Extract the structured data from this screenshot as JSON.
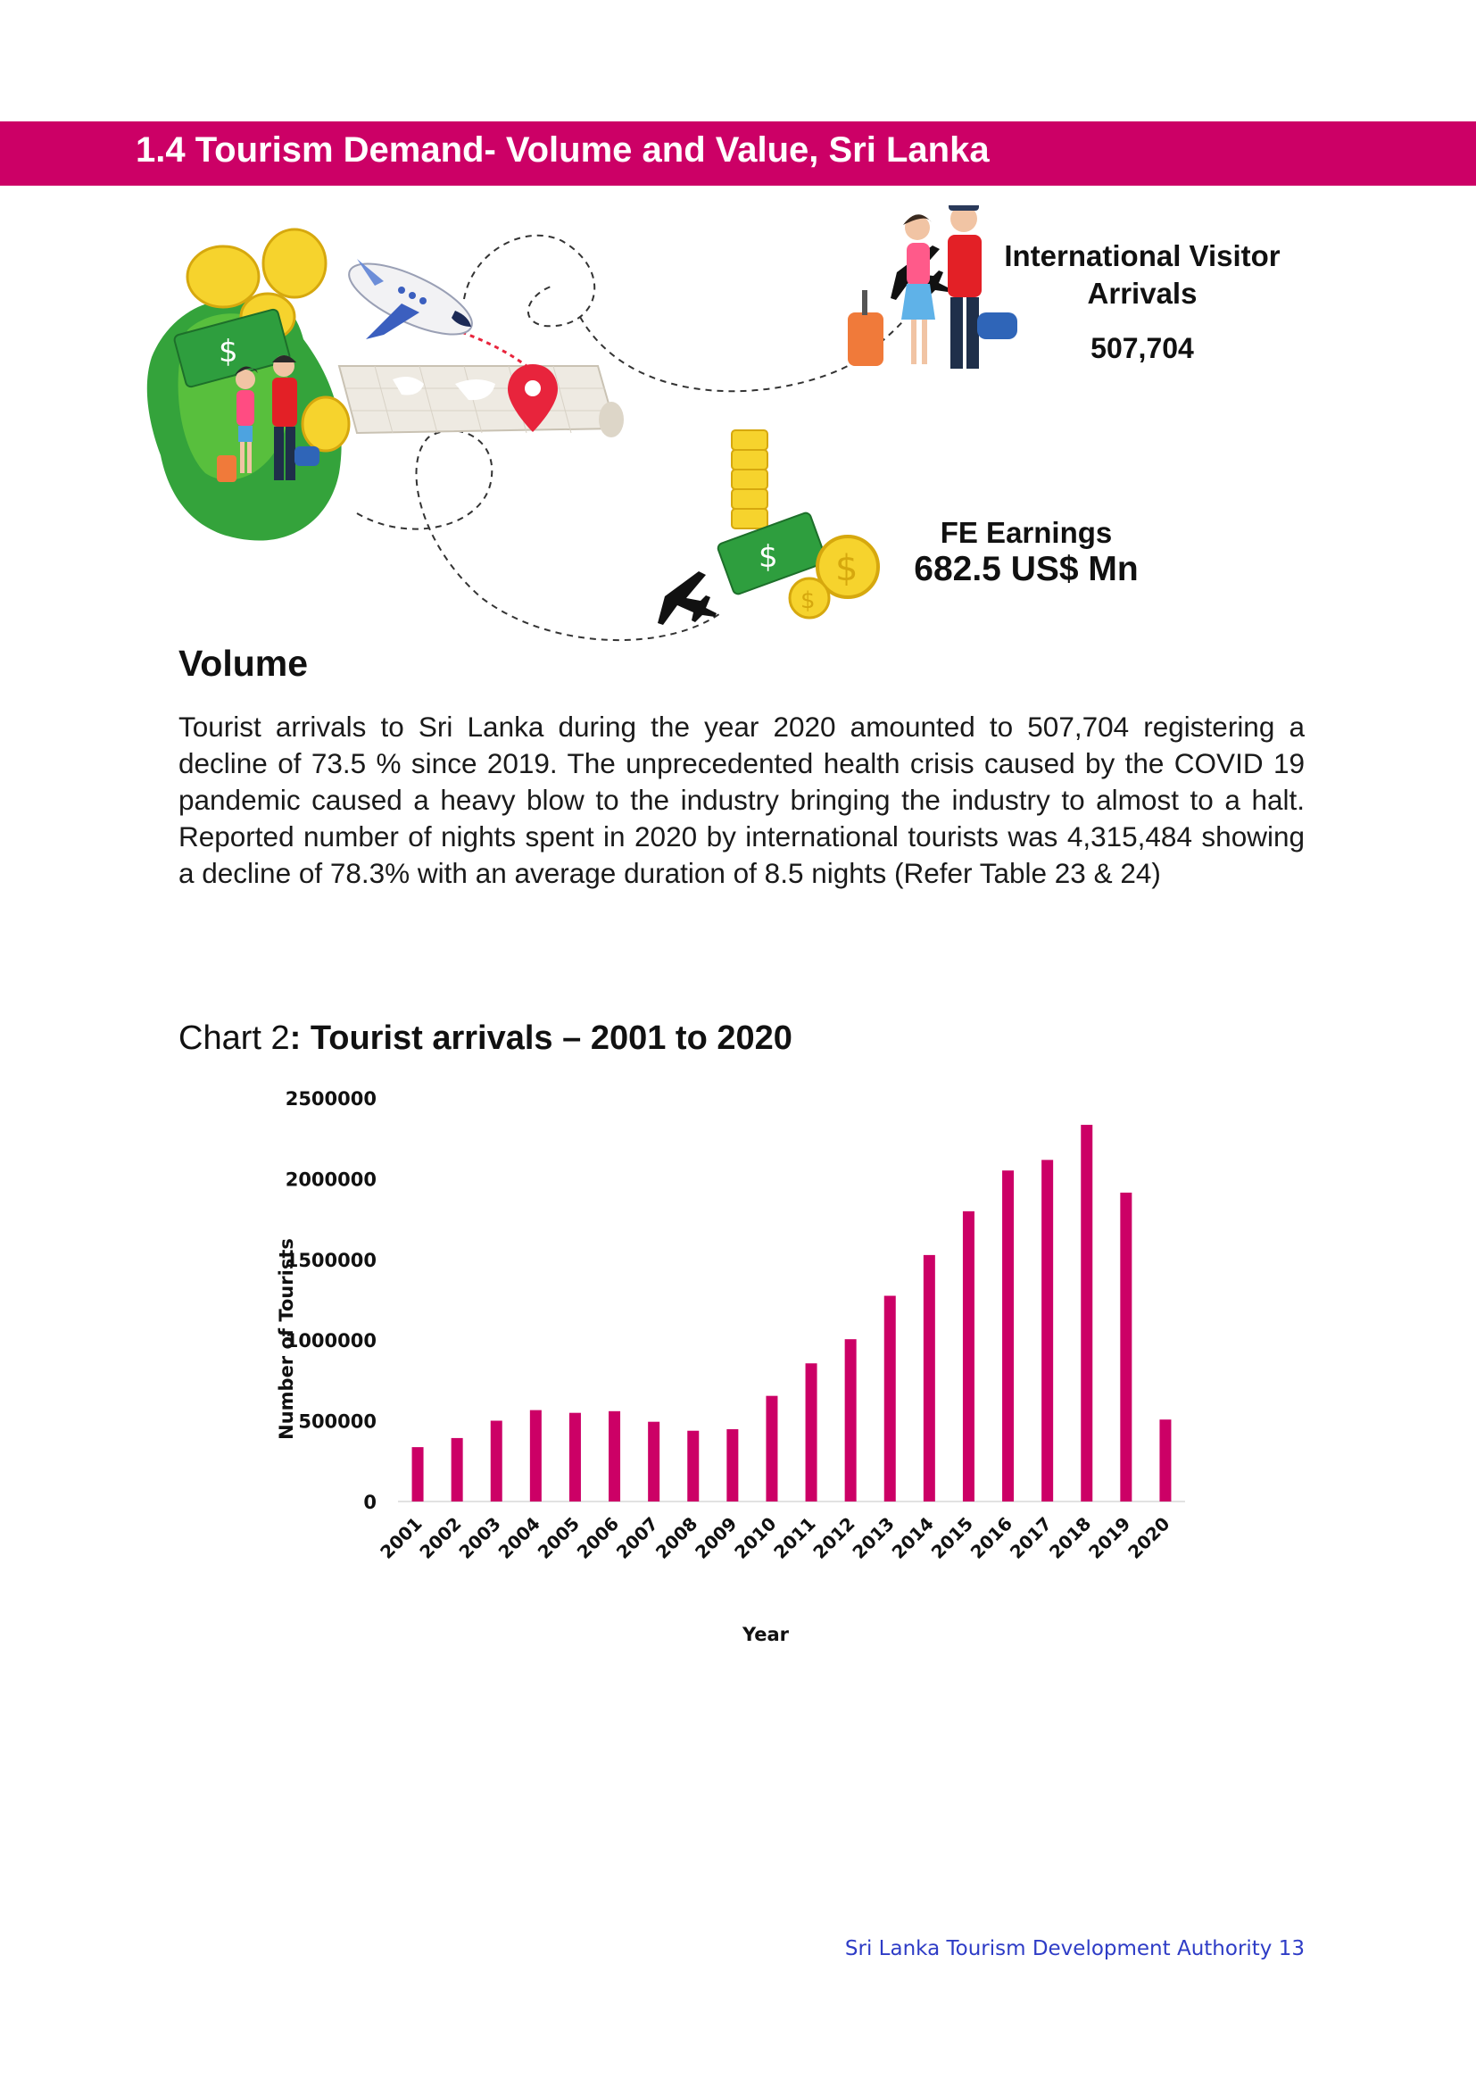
{
  "header": {
    "title": "1.4 Tourism Demand- Volume and Value, Sri Lanka",
    "color": "#cc0066"
  },
  "infographic": {
    "arrivals_label": "International Visitor Arrivals",
    "arrivals_value": "507,704",
    "earnings_label": "FE Earnings",
    "earnings_value": "682.5 US$ Mn",
    "icons": [
      "sri-lanka-map-icon",
      "coins-icon",
      "airplane-icon",
      "world-map-icon",
      "location-pin-icon",
      "travelers-icon",
      "money-icon"
    ]
  },
  "volume": {
    "heading": "Volume",
    "paragraph": "Tourist arrivals to Sri Lanka during the year 2020 amounted to 507,704 registering a decline of 73.5 % since 2019. The unprecedented health crisis caused by the COVID 19 pandemic caused a heavy blow to the industry bringing the industry to almost to a halt.  Reported number of nights spent in 2020 by international tourists was 4,315,484 showing a decline of 78.3% with an average duration of 8.5 nights (Refer Table 23 & 24)"
  },
  "chart_caption": {
    "prefix": "Chart 2",
    "bold": ": Tourist arrivals – 2001 to 2020"
  },
  "chart_data": {
    "type": "bar",
    "categories": [
      "2001",
      "2002",
      "2003",
      "2004",
      "2005",
      "2006",
      "2007",
      "2008",
      "2009",
      "2010",
      "2011",
      "2012",
      "2013",
      "2014",
      "2015",
      "2016",
      "2017",
      "2018",
      "2019",
      "2020"
    ],
    "values": [
      336794,
      393171,
      500642,
      566202,
      549308,
      559603,
      494008,
      438475,
      447890,
      654476,
      855975,
      1005605,
      1274593,
      1527153,
      1798380,
      2050832,
      2116407,
      2333796,
      1913702,
      507704
    ],
    "xlabel": "Year",
    "ylabel": "Number of Tourists",
    "ylim": [
      0,
      2500000
    ],
    "yticks": [
      "0",
      "500000",
      "1000000",
      "1500000",
      "2000000",
      "2500000"
    ],
    "grid": false,
    "legend": "none",
    "bar_color": "#cc0066"
  },
  "footer": {
    "text": "Sri Lanka Tourism Development Authority 13"
  }
}
